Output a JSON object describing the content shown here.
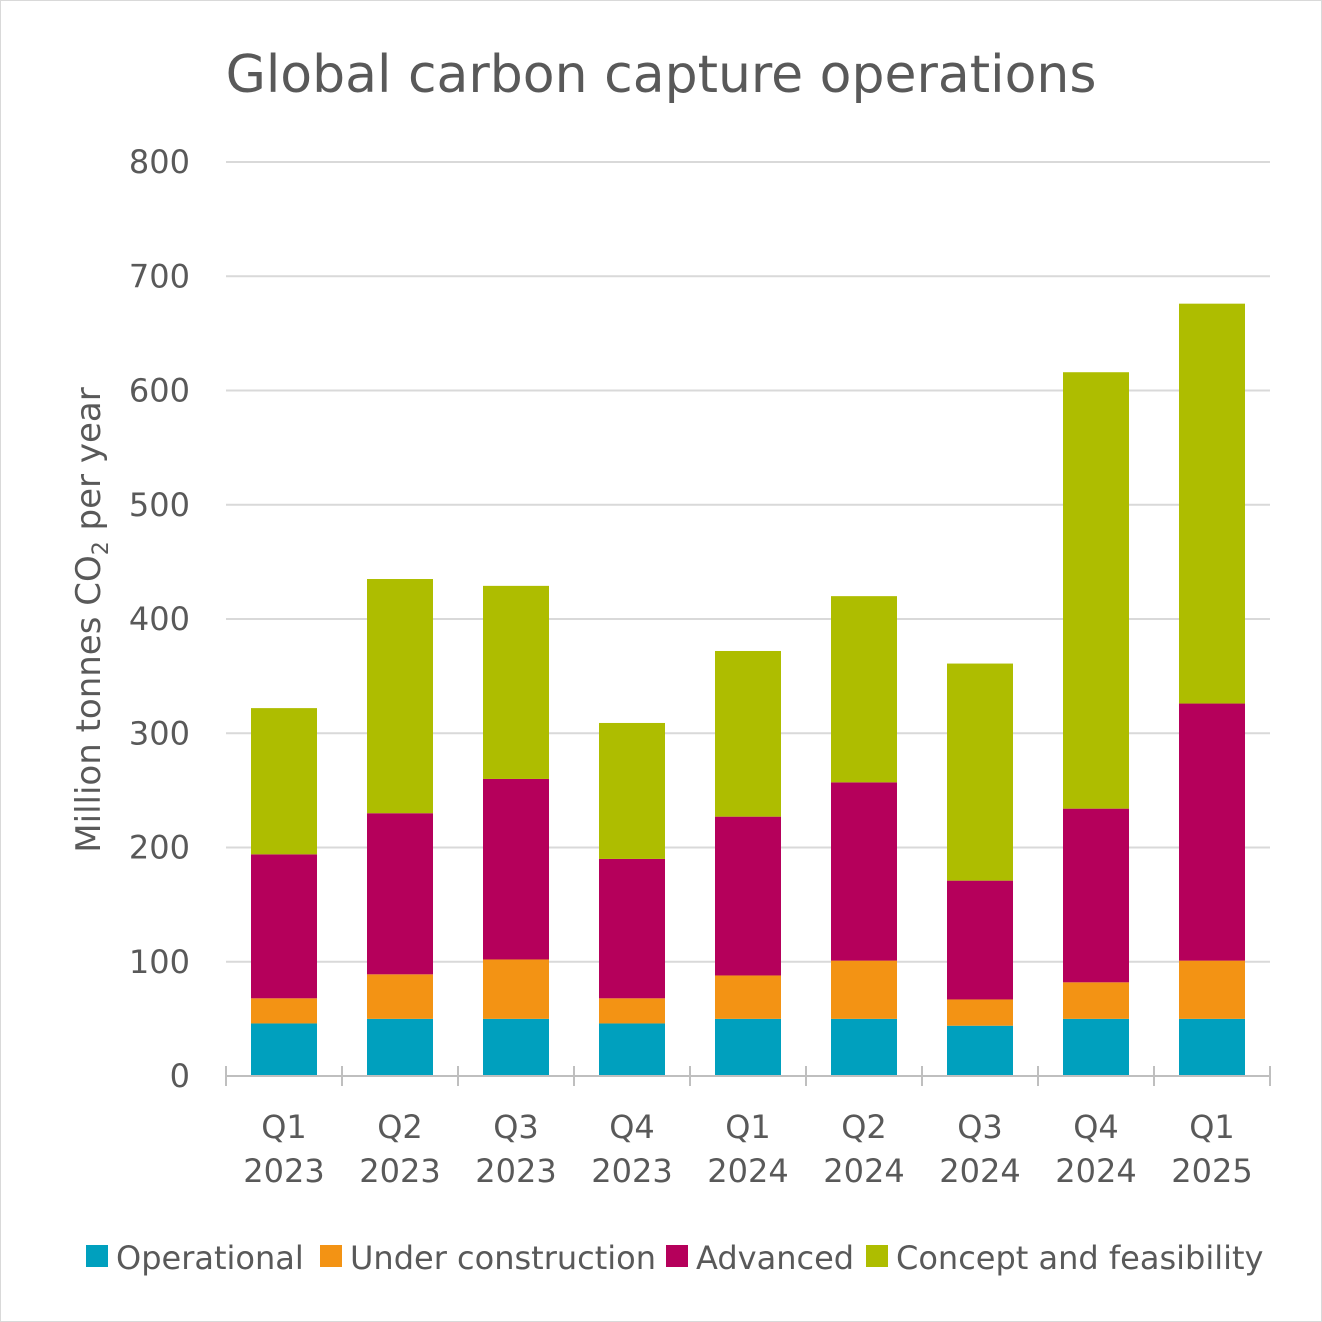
{
  "chart_data": {
    "type": "bar",
    "stacked": true,
    "title": "Global carbon capture operations",
    "ylabel_main": "Million tonnes CO",
    "ylabel_sub": "2",
    "ylabel_tail": " per year",
    "ylim": [
      0,
      800
    ],
    "yticks": [
      0,
      100,
      200,
      300,
      400,
      500,
      600,
      700,
      800
    ],
    "grid": true,
    "legend_position": "bottom",
    "categories": [
      [
        "Q1",
        "2023"
      ],
      [
        "Q2",
        "2023"
      ],
      [
        "Q3",
        "2023"
      ],
      [
        "Q4",
        "2023"
      ],
      [
        "Q1",
        "2024"
      ],
      [
        "Q2",
        "2024"
      ],
      [
        "Q3",
        "2024"
      ],
      [
        "Q4",
        "2024"
      ],
      [
        "Q1",
        "2025"
      ]
    ],
    "series": [
      {
        "name": "Operational",
        "color": "#00a0be",
        "values": [
          46,
          50,
          50,
          46,
          50,
          50,
          44,
          50,
          50
        ]
      },
      {
        "name": "Under construction",
        "color": "#f39314",
        "values": [
          22,
          39,
          52,
          22,
          38,
          51,
          23,
          32,
          51
        ]
      },
      {
        "name": "Advanced",
        "color": "#b5005b",
        "values": [
          126,
          141,
          158,
          122,
          139,
          156,
          104,
          152,
          225
        ]
      },
      {
        "name": "Concept and feasibility",
        "color": "#aebd00",
        "values": [
          128,
          205,
          169,
          119,
          145,
          163,
          190,
          382,
          350
        ]
      }
    ]
  }
}
